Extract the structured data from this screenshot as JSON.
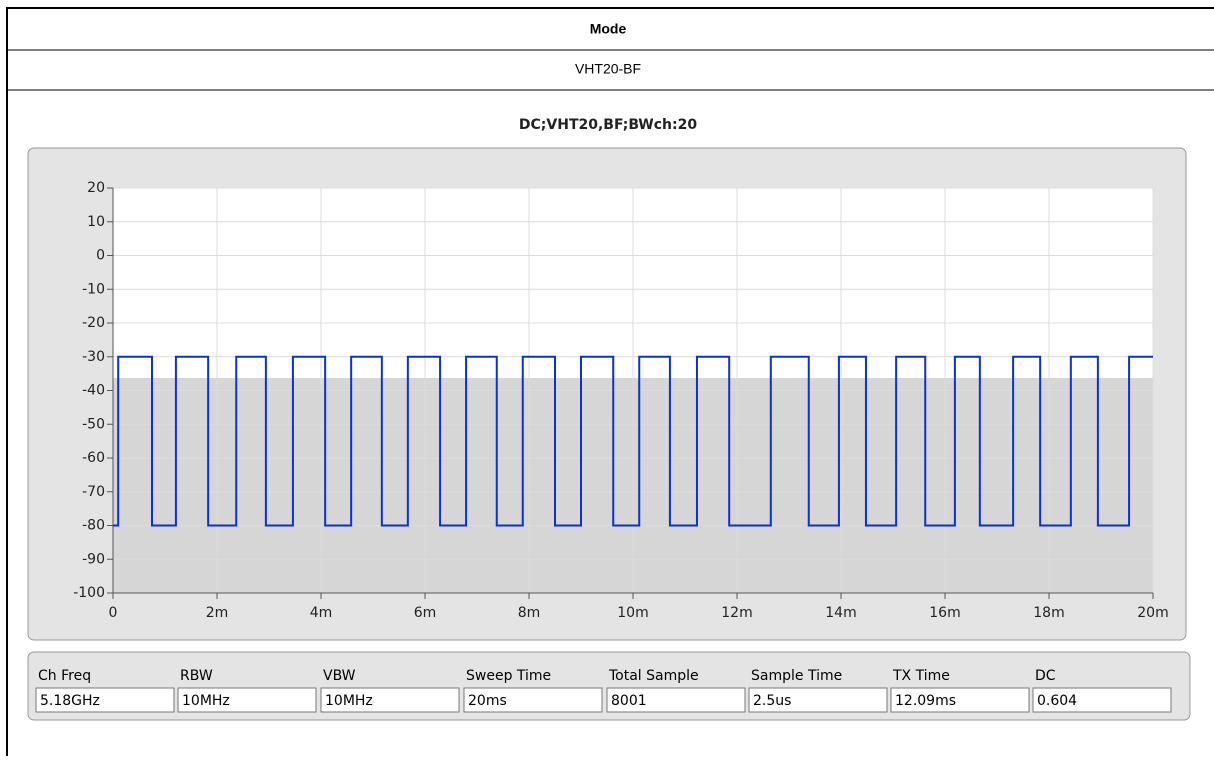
{
  "table": {
    "header": "Mode",
    "mode": "VHT20-BF"
  },
  "chart_data": {
    "type": "line",
    "title": "DC;VHT20,BF;BWch:20",
    "x": [
      0,
      0.0001,
      0.0001,
      0.00075,
      0.00075,
      0.00121,
      0.00121,
      0.00183,
      0.00183,
      0.00237,
      0.00237,
      0.00294,
      0.00294,
      0.00346,
      0.00346,
      0.00408,
      0.00408,
      0.00458,
      0.00458,
      0.00517,
      0.00517,
      0.00567,
      0.00567,
      0.00629,
      0.00629,
      0.00679,
      0.00679,
      0.00738,
      0.00738,
      0.00788,
      0.00788,
      0.0085,
      0.0085,
      0.009,
      0.009,
      0.00962,
      0.00962,
      0.01012,
      0.01012,
      0.01071,
      0.01071,
      0.01123,
      0.01123,
      0.01185,
      0.01185,
      0.01265,
      0.01265,
      0.01338,
      0.01338,
      0.01396,
      0.01396,
      0.01448,
      0.01448,
      0.01506,
      0.01506,
      0.01562,
      0.01562,
      0.01619,
      0.01619,
      0.01667,
      0.01667,
      0.01731,
      0.01731,
      0.01783,
      0.01783,
      0.01842,
      0.01842,
      0.01894,
      0.01894,
      0.01954,
      0.01954,
      0.02
    ],
    "series": [
      {
        "color": "#0a32d2",
        "values": [
          -80,
          -80,
          -30,
          -30,
          -80,
          -80,
          -30,
          -30,
          -80,
          -80,
          -30,
          -30,
          -80,
          -80,
          -30,
          -30,
          -80,
          -80,
          -30,
          -30,
          -80,
          -80,
          -30,
          -30,
          -80,
          -80,
          -30,
          -30,
          -80,
          -80,
          -30,
          -30,
          -80,
          -80,
          -30,
          -30,
          -80,
          -80,
          -30,
          -30,
          -80,
          -80,
          -30,
          -30,
          -80,
          -80,
          -30,
          -30,
          -80,
          -80,
          -30,
          -30,
          -80,
          -80,
          -30,
          -30,
          -80,
          -80,
          -30,
          -30,
          -80,
          -80,
          -30,
          -30,
          -80,
          -80,
          -30,
          -30,
          -80,
          -80,
          -30,
          -30
        ]
      }
    ],
    "xlim": [
      0,
      0.02
    ],
    "xticks": [
      0,
      {
        "value": 0.002,
        "label": "2m"
      },
      {
        "value": 0.004,
        "label": "4m"
      },
      {
        "value": 0.006,
        "label": "6m"
      },
      {
        "value": 0.008,
        "label": "8m"
      },
      {
        "value": 0.01,
        "label": "10m"
      },
      {
        "value": 0.012,
        "label": "12m"
      },
      {
        "value": 0.014,
        "label": "14m"
      },
      {
        "value": 0.016,
        "label": "16m"
      },
      {
        "value": 0.018,
        "label": "18m"
      },
      {
        "value": 0.02,
        "label": "20m"
      }
    ],
    "ylim": [
      -100,
      20
    ],
    "yticks": [
      20,
      10,
      0,
      -10,
      -20,
      -30,
      -40,
      -50,
      -60,
      -70,
      -80,
      -90,
      -100
    ],
    "grid": true
  },
  "fields": [
    {
      "label": "Ch Freq",
      "value": "5.18GHz"
    },
    {
      "label": "RBW",
      "value": "10MHz"
    },
    {
      "label": "VBW",
      "value": "10MHz"
    },
    {
      "label": "Sweep Time",
      "value": "20ms"
    },
    {
      "label": "Total Sample",
      "value": "8001"
    },
    {
      "label": "Sample Time",
      "value": "2.5us"
    },
    {
      "label": "TX Time",
      "value": "12.09ms"
    },
    {
      "label": "DC",
      "value": "0.604"
    }
  ]
}
